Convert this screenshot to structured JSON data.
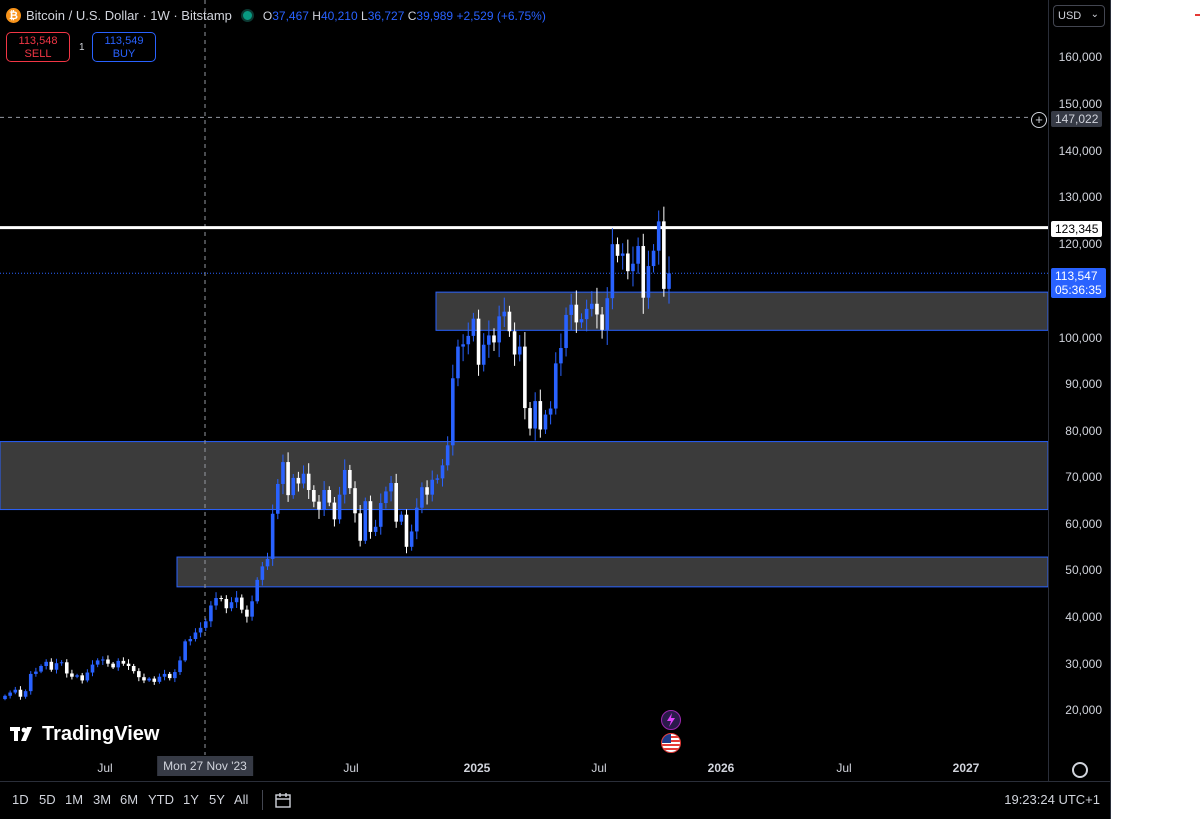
{
  "header": {
    "symbol_title": "Bitcoin / U.S. Dollar · 1W · Bitstamp",
    "coin_icon": "bitcoin-icon",
    "ohlc": {
      "o_label": "O",
      "o_value": "37,467",
      "h_label": "H",
      "h_value": "40,210",
      "l_label": "L",
      "l_value": "36,727",
      "c_label": "C",
      "c_value": "39,989",
      "change": "+2,529 (+6.75%)"
    }
  },
  "trade": {
    "sell_price": "113,548",
    "sell_label": "SELL",
    "spread": "1",
    "buy_price": "113,549",
    "buy_label": "BUY"
  },
  "price_scale": {
    "currency": "USD",
    "ticks": [
      "160,000",
      "150,000",
      "140,000",
      "130,000",
      "120,000",
      "100,000",
      "90,000",
      "80,000",
      "70,000",
      "60,000",
      "50,000",
      "40,000",
      "30,000",
      "20,000"
    ],
    "crosshair_price": "147,022",
    "resistance_price": "123,345",
    "last_price": "113,547",
    "countdown": "05:36:35"
  },
  "time_axis": {
    "labels": [
      "Jul",
      "Jul",
      "2025",
      "Jul",
      "2026",
      "Jul",
      "2027"
    ],
    "crosshair_date": "Mon 27 Nov '23",
    "settings_icon": "gear-icon"
  },
  "bottom_bar": {
    "ranges": [
      "1D",
      "5D",
      "1M",
      "3M",
      "6M",
      "YTD",
      "1Y",
      "5Y",
      "All"
    ],
    "calendar_icon": "date-range-icon",
    "clock": "19:23:24 UTC+1"
  },
  "branding": {
    "logo_text": "TradingView"
  },
  "colors": {
    "background": "#000000",
    "candle_up": "#2962ff",
    "candle_down": "#ffffff",
    "zone_fill": "#3b3b3b",
    "zone_border": "#2962ff",
    "resistance_line": "#ffffff",
    "sell": "#f23645",
    "buy": "#2962ff"
  }
}
